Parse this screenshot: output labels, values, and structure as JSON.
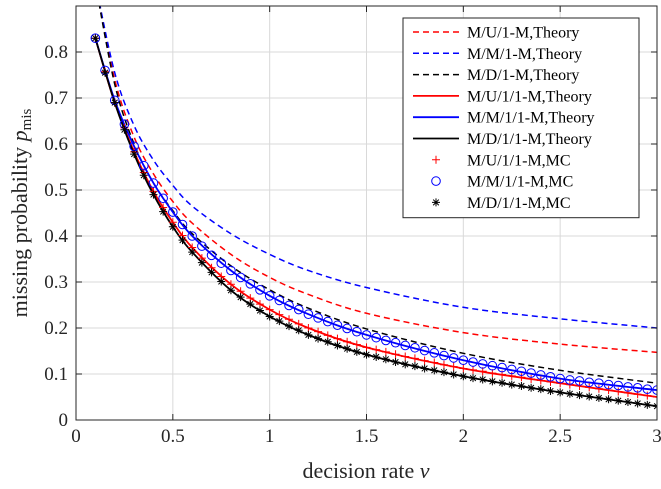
{
  "chart_data": {
    "type": "line",
    "xlabel": "decision rate ν",
    "ylabel": "missing probability p_mis",
    "ylabel_main": "missing probability ",
    "ylabel_sym": "p",
    "ylabel_sub": "mis",
    "xlabel_main": "decision rate ",
    "xlabel_sym": "ν",
    "xlim": [
      0,
      3
    ],
    "ylim": [
      0,
      0.9
    ],
    "grid": true,
    "legend_position": "top-right",
    "xticks": [
      0,
      0.5,
      1,
      1.5,
      2,
      2.5,
      3
    ],
    "xtick_labels": [
      "0",
      "0.5",
      "1",
      "1.5",
      "2",
      "2.5",
      "3"
    ],
    "yticks": [
      0,
      0.1,
      0.2,
      0.3,
      0.4,
      0.5,
      0.6,
      0.7,
      0.8
    ],
    "ytick_labels": [
      "0",
      "0.1",
      "0.2",
      "0.3",
      "0.4",
      "0.5",
      "0.6",
      "0.7",
      "0.8"
    ],
    "series": [
      {
        "name": "M/U/1-M,Theory",
        "color": "#ff0000",
        "style": "dashed",
        "marker": "none",
        "x": [
          0.1,
          0.2,
          0.3,
          0.4,
          0.5,
          0.6,
          0.8,
          1.0,
          1.2,
          1.5,
          2.0,
          2.5,
          3.0
        ],
        "y": [
          0.95,
          0.74,
          0.615,
          0.535,
          0.475,
          0.428,
          0.36,
          0.31,
          0.273,
          0.232,
          0.19,
          0.165,
          0.147
        ]
      },
      {
        "name": "M/M/1-M,Theory",
        "color": "#0000ff",
        "style": "dashed",
        "marker": "none",
        "x": [
          0.1,
          0.2,
          0.3,
          0.4,
          0.5,
          0.6,
          0.8,
          1.0,
          1.2,
          1.5,
          2.0,
          2.5,
          3.0
        ],
        "y": [
          0.95,
          0.755,
          0.64,
          0.565,
          0.51,
          0.465,
          0.405,
          0.36,
          0.325,
          0.288,
          0.245,
          0.22,
          0.2
        ]
      },
      {
        "name": "M/D/1-M,Theory",
        "color": "#000000",
        "style": "dashed",
        "marker": "none",
        "x": [
          0.1,
          0.2,
          0.3,
          0.4,
          0.5,
          0.6,
          0.8,
          1.0,
          1.2,
          1.5,
          2.0,
          2.5,
          3.0
        ],
        "y": [
          0.95,
          0.73,
          0.6,
          0.515,
          0.455,
          0.405,
          0.335,
          0.283,
          0.243,
          0.198,
          0.145,
          0.108,
          0.08
        ]
      },
      {
        "name": "M/U/1/1-M,Theory",
        "color": "#ff0000",
        "style": "solid",
        "marker": "none",
        "x": [
          0.1,
          0.2,
          0.3,
          0.4,
          0.5,
          0.6,
          0.8,
          1.0,
          1.2,
          1.5,
          2.0,
          2.5,
          3.0
        ],
        "y": [
          0.83,
          0.69,
          0.583,
          0.497,
          0.43,
          0.375,
          0.295,
          0.24,
          0.2,
          0.158,
          0.112,
          0.08,
          0.05
        ]
      },
      {
        "name": "M/M/1/1-M,Theory",
        "color": "#0000ff",
        "style": "solid",
        "marker": "none",
        "x": [
          0.1,
          0.2,
          0.3,
          0.4,
          0.5,
          0.6,
          0.8,
          1.0,
          1.2,
          1.5,
          2.0,
          2.5,
          3.0
        ],
        "y": [
          0.83,
          0.695,
          0.595,
          0.515,
          0.452,
          0.4,
          0.325,
          0.27,
          0.23,
          0.185,
          0.13,
          0.09,
          0.065
        ]
      },
      {
        "name": "M/D/1/1-M,Theory",
        "color": "#000000",
        "style": "solid",
        "marker": "none",
        "x": [
          0.1,
          0.2,
          0.3,
          0.4,
          0.5,
          0.6,
          0.8,
          1.0,
          1.2,
          1.5,
          2.0,
          2.5,
          3.0
        ],
        "y": [
          0.83,
          0.69,
          0.578,
          0.49,
          0.42,
          0.365,
          0.282,
          0.225,
          0.185,
          0.142,
          0.095,
          0.06,
          0.03
        ]
      },
      {
        "name": "M/U/1/1-M,MC",
        "color": "#ff0000",
        "style": "none",
        "marker": "+",
        "x": [
          0.1,
          0.15,
          0.2,
          0.25,
          0.3,
          0.35,
          0.4,
          0.45,
          0.5,
          0.55,
          0.6,
          0.65,
          0.7,
          0.75,
          0.8,
          0.85,
          0.9,
          0.95,
          1.0,
          1.05,
          1.1,
          1.15,
          1.2,
          1.25,
          1.3,
          1.35,
          1.4,
          1.45,
          1.5,
          1.55,
          1.6,
          1.65,
          1.7,
          1.75,
          1.8,
          1.85,
          1.9,
          1.95,
          2.0,
          2.05,
          2.1,
          2.15,
          2.2,
          2.25,
          2.3,
          2.35,
          2.4,
          2.45,
          2.5,
          2.55,
          2.6,
          2.65,
          2.7,
          2.75,
          2.8,
          2.85,
          2.9,
          2.95,
          3.0
        ],
        "y": [
          0.83,
          0.757,
          0.69,
          0.635,
          0.583,
          0.538,
          0.497,
          0.462,
          0.43,
          0.401,
          0.375,
          0.352,
          0.331,
          0.312,
          0.295,
          0.28,
          0.265,
          0.252,
          0.24,
          0.229,
          0.219,
          0.209,
          0.2,
          0.192,
          0.184,
          0.177,
          0.17,
          0.164,
          0.158,
          0.153,
          0.148,
          0.143,
          0.138,
          0.134,
          0.129,
          0.125,
          0.12,
          0.116,
          0.112,
          0.109,
          0.106,
          0.102,
          0.099,
          0.096,
          0.093,
          0.089,
          0.086,
          0.083,
          0.08,
          0.077,
          0.074,
          0.071,
          0.068,
          0.065,
          0.062,
          0.059,
          0.056,
          0.053,
          0.05
        ]
      },
      {
        "name": "M/M/1/1-M,MC",
        "color": "#0000ff",
        "style": "none",
        "marker": "o",
        "x": [
          0.1,
          0.15,
          0.2,
          0.25,
          0.3,
          0.35,
          0.4,
          0.45,
          0.5,
          0.55,
          0.6,
          0.65,
          0.7,
          0.75,
          0.8,
          0.85,
          0.9,
          0.95,
          1.0,
          1.05,
          1.1,
          1.15,
          1.2,
          1.25,
          1.3,
          1.35,
          1.4,
          1.45,
          1.5,
          1.55,
          1.6,
          1.65,
          1.7,
          1.75,
          1.8,
          1.85,
          1.9,
          1.95,
          2.0,
          2.05,
          2.1,
          2.15,
          2.2,
          2.25,
          2.3,
          2.35,
          2.4,
          2.45,
          2.5,
          2.55,
          2.6,
          2.65,
          2.7,
          2.75,
          2.8,
          2.85,
          2.9,
          2.95,
          3.0
        ],
        "y": [
          0.83,
          0.76,
          0.695,
          0.643,
          0.595,
          0.553,
          0.515,
          0.482,
          0.452,
          0.425,
          0.4,
          0.378,
          0.358,
          0.341,
          0.325,
          0.31,
          0.296,
          0.283,
          0.27,
          0.26,
          0.249,
          0.24,
          0.23,
          0.222,
          0.214,
          0.206,
          0.199,
          0.192,
          0.185,
          0.179,
          0.173,
          0.168,
          0.162,
          0.157,
          0.151,
          0.146,
          0.14,
          0.135,
          0.13,
          0.126,
          0.122,
          0.118,
          0.114,
          0.11,
          0.106,
          0.102,
          0.098,
          0.094,
          0.09,
          0.087,
          0.085,
          0.082,
          0.08,
          0.077,
          0.075,
          0.072,
          0.07,
          0.067,
          0.065
        ]
      },
      {
        "name": "M/D/1/1-M,MC",
        "color": "#000000",
        "style": "none",
        "marker": "*",
        "x": [
          0.1,
          0.15,
          0.2,
          0.25,
          0.3,
          0.35,
          0.4,
          0.45,
          0.5,
          0.55,
          0.6,
          0.65,
          0.7,
          0.75,
          0.8,
          0.85,
          0.9,
          0.95,
          1.0,
          1.05,
          1.1,
          1.15,
          1.2,
          1.25,
          1.3,
          1.35,
          1.4,
          1.45,
          1.5,
          1.55,
          1.6,
          1.65,
          1.7,
          1.75,
          1.8,
          1.85,
          1.9,
          1.95,
          2.0,
          2.05,
          2.1,
          2.15,
          2.2,
          2.25,
          2.3,
          2.35,
          2.4,
          2.45,
          2.5,
          2.55,
          2.6,
          2.65,
          2.7,
          2.75,
          2.8,
          2.85,
          2.9,
          2.95,
          3.0
        ],
        "y": [
          0.83,
          0.755,
          0.69,
          0.631,
          0.578,
          0.532,
          0.49,
          0.453,
          0.42,
          0.391,
          0.365,
          0.342,
          0.321,
          0.301,
          0.282,
          0.267,
          0.252,
          0.238,
          0.225,
          0.215,
          0.204,
          0.195,
          0.185,
          0.177,
          0.17,
          0.162,
          0.155,
          0.148,
          0.142,
          0.137,
          0.132,
          0.126,
          0.121,
          0.117,
          0.112,
          0.108,
          0.104,
          0.099,
          0.095,
          0.091,
          0.088,
          0.084,
          0.081,
          0.077,
          0.074,
          0.07,
          0.067,
          0.063,
          0.06,
          0.057,
          0.054,
          0.051,
          0.048,
          0.045,
          0.042,
          0.039,
          0.036,
          0.033,
          0.03
        ]
      }
    ]
  }
}
